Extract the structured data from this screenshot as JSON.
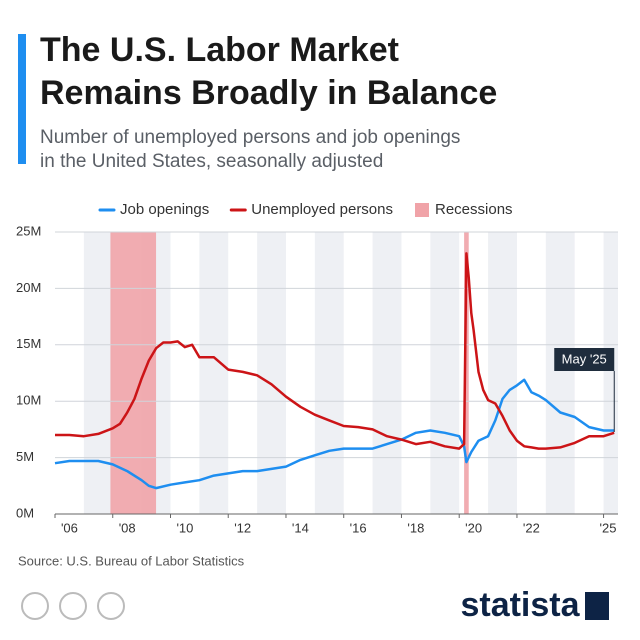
{
  "chart_data": {
    "type": "line",
    "title_lines": [
      "The U.S. Labor Market",
      "Remains Broadly in Balance"
    ],
    "subtitle_lines": [
      "Number of unemployed persons and job openings",
      "in the United States, seasonally adjusted"
    ],
    "source": "Source: U.S. Bureau of Labor Statistics",
    "brand": "statista",
    "xlim": [
      2006,
      2025.5
    ],
    "xticks": [
      {
        "value": 2006,
        "label": "'06"
      },
      {
        "value": 2008,
        "label": "'08"
      },
      {
        "value": 2010,
        "label": "'10"
      },
      {
        "value": 2012,
        "label": "'12"
      },
      {
        "value": 2014,
        "label": "'14"
      },
      {
        "value": 2016,
        "label": "'16"
      },
      {
        "value": 2018,
        "label": "'18"
      },
      {
        "value": 2020,
        "label": "'20"
      },
      {
        "value": 2022,
        "label": "'22"
      },
      {
        "value": 2025,
        "label": "'25"
      }
    ],
    "ylim": [
      0,
      25
    ],
    "yticks": [
      {
        "value": 0,
        "label": "0M"
      },
      {
        "value": 5,
        "label": "5M"
      },
      {
        "value": 10,
        "label": "10M"
      },
      {
        "value": 15,
        "label": "15M"
      },
      {
        "value": 20,
        "label": "20M"
      },
      {
        "value": 25,
        "label": "25M"
      }
    ],
    "grid": true,
    "recessions": {
      "name": "Recessions",
      "color": "#f0a3a8",
      "ranges": [
        [
          2007.92,
          2009.5
        ],
        [
          2020.17,
          2020.33
        ]
      ]
    },
    "annotation": {
      "text": "May '25",
      "x": 2025.37
    },
    "series": [
      {
        "name": "Job openings",
        "color": "#1e8ef0",
        "x": [
          2006.0,
          2006.5,
          2007.0,
          2007.5,
          2008.0,
          2008.5,
          2009.0,
          2009.25,
          2009.5,
          2010.0,
          2010.5,
          2011.0,
          2011.5,
          2012.0,
          2012.5,
          2013.0,
          2013.5,
          2014.0,
          2014.5,
          2015.0,
          2015.5,
          2016.0,
          2016.5,
          2017.0,
          2017.5,
          2018.0,
          2018.5,
          2019.0,
          2019.5,
          2020.0,
          2020.17,
          2020.25,
          2020.42,
          2020.67,
          2021.0,
          2021.25,
          2021.5,
          2021.75,
          2022.0,
          2022.25,
          2022.5,
          2022.75,
          2023.0,
          2023.5,
          2024.0,
          2024.5,
          2025.0,
          2025.37
        ],
        "values": [
          4.5,
          4.7,
          4.7,
          4.7,
          4.4,
          3.8,
          3.0,
          2.5,
          2.3,
          2.6,
          2.8,
          3.0,
          3.4,
          3.6,
          3.8,
          3.8,
          4.0,
          4.2,
          4.8,
          5.2,
          5.6,
          5.8,
          5.8,
          5.8,
          6.2,
          6.6,
          7.2,
          7.4,
          7.2,
          6.9,
          6.0,
          4.6,
          5.5,
          6.5,
          6.9,
          8.3,
          10.2,
          11.0,
          11.4,
          11.9,
          10.8,
          10.5,
          10.1,
          9.0,
          8.6,
          7.7,
          7.4,
          7.4
        ]
      },
      {
        "name": "Unemployed persons",
        "color": "#cc1417",
        "x": [
          2006.0,
          2006.5,
          2007.0,
          2007.5,
          2008.0,
          2008.25,
          2008.5,
          2008.75,
          2009.0,
          2009.25,
          2009.5,
          2009.75,
          2010.0,
          2010.25,
          2010.5,
          2010.75,
          2011.0,
          2011.5,
          2012.0,
          2012.5,
          2013.0,
          2013.5,
          2014.0,
          2014.5,
          2015.0,
          2015.5,
          2016.0,
          2016.5,
          2017.0,
          2017.5,
          2018.0,
          2018.5,
          2019.0,
          2019.5,
          2020.0,
          2020.17,
          2020.25,
          2020.33,
          2020.42,
          2020.5,
          2020.67,
          2020.83,
          2021.0,
          2021.25,
          2021.5,
          2021.75,
          2022.0,
          2022.25,
          2022.5,
          2022.75,
          2023.0,
          2023.5,
          2024.0,
          2024.5,
          2025.0,
          2025.37
        ],
        "values": [
          7.0,
          7.0,
          6.9,
          7.1,
          7.6,
          8.0,
          9.0,
          10.2,
          12.0,
          13.6,
          14.7,
          15.2,
          15.2,
          15.3,
          14.8,
          15.0,
          13.9,
          13.9,
          12.8,
          12.6,
          12.3,
          11.5,
          10.4,
          9.5,
          8.8,
          8.3,
          7.8,
          7.7,
          7.5,
          6.9,
          6.6,
          6.2,
          6.4,
          6.0,
          5.8,
          6.2,
          23.1,
          21.0,
          17.8,
          16.3,
          12.6,
          11.0,
          10.1,
          9.8,
          8.7,
          7.4,
          6.5,
          6.0,
          5.9,
          5.8,
          5.8,
          5.9,
          6.3,
          6.9,
          6.9,
          7.2
        ]
      }
    ]
  }
}
